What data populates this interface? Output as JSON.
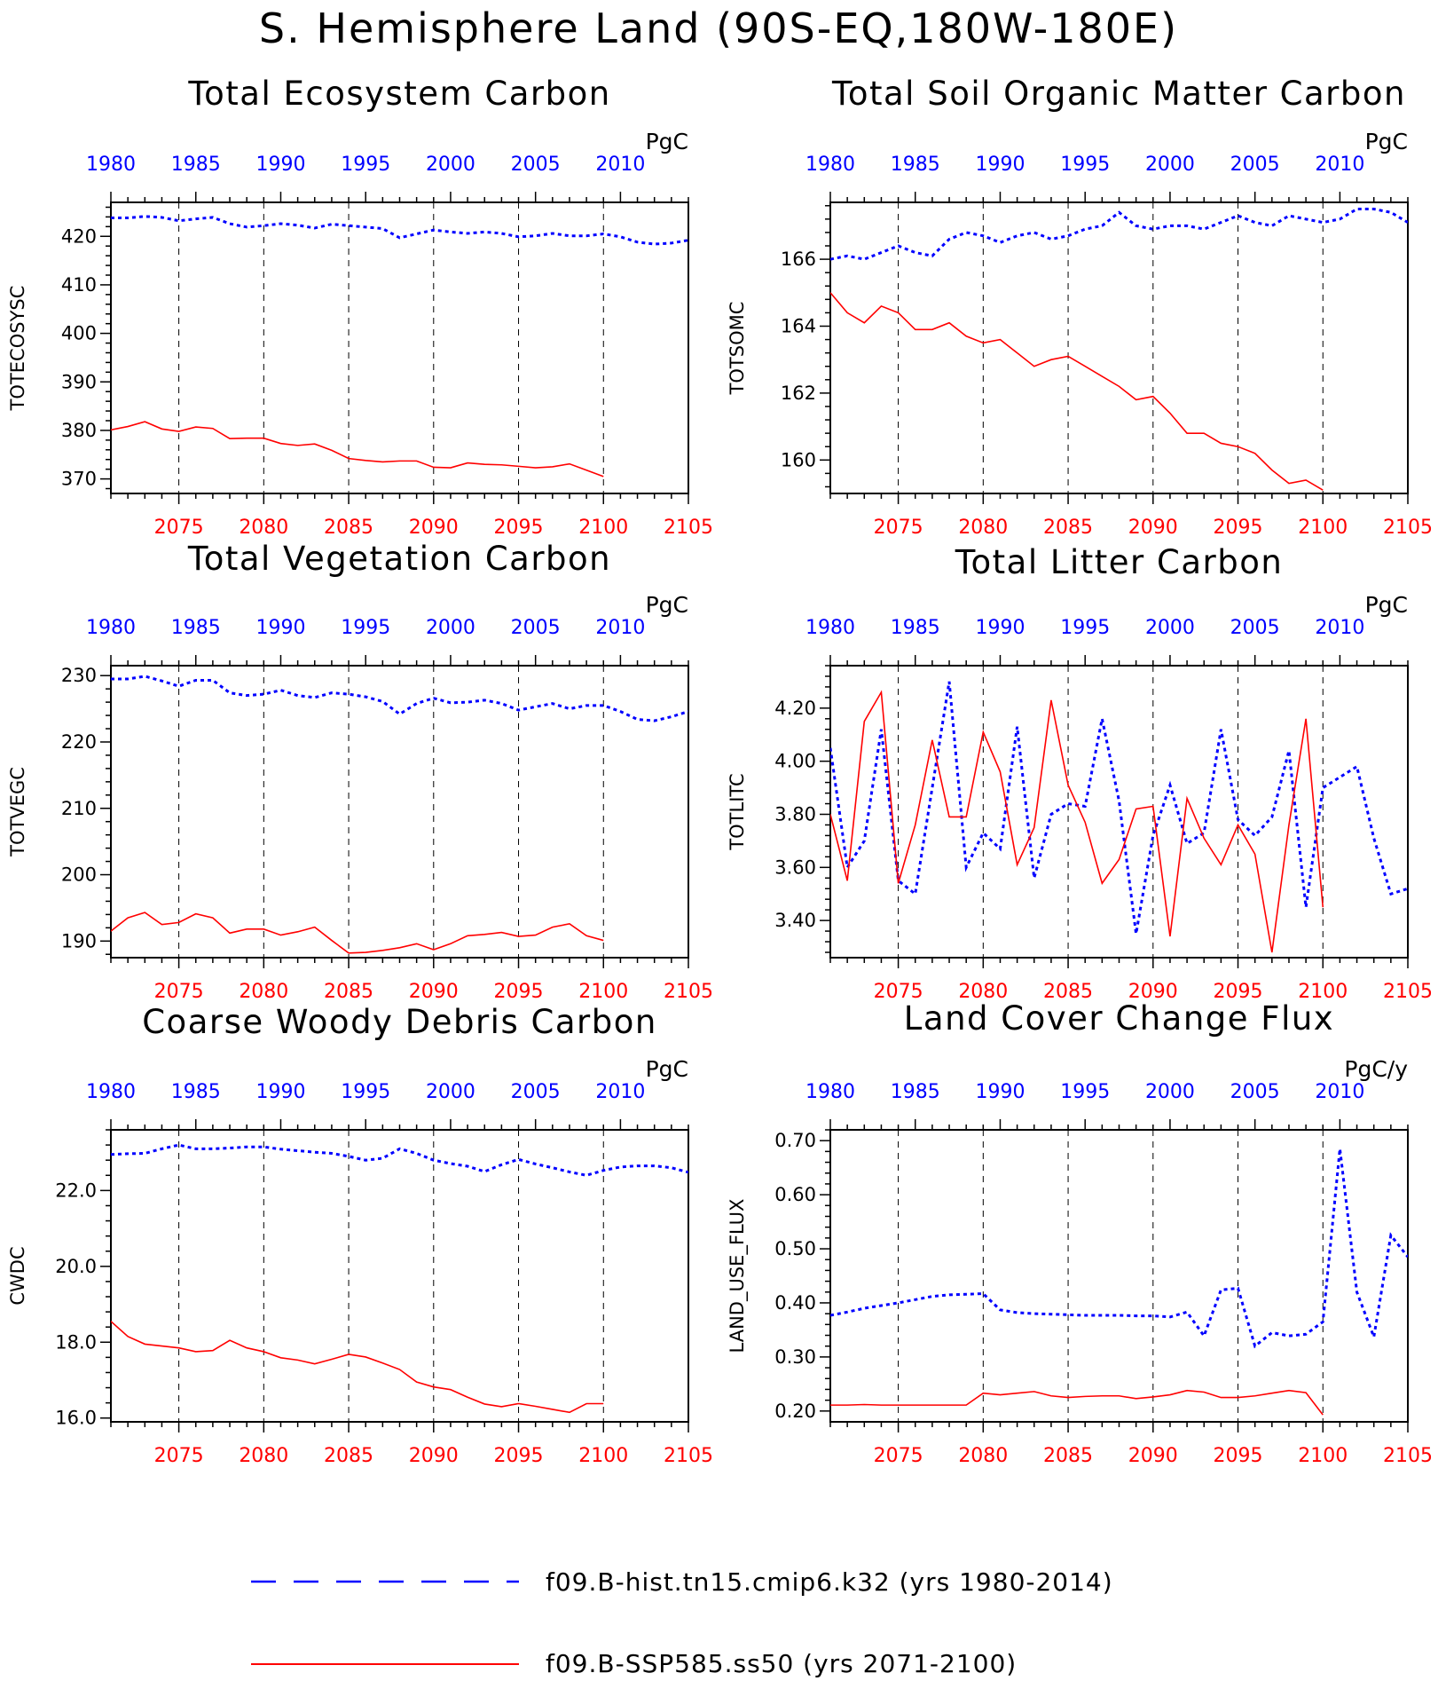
{
  "main_title": "S. Hemisphere Land (90S-EQ,180W-180E)",
  "colors": {
    "hist": "#0000ff",
    "ssp": "#ff0000"
  },
  "legend": {
    "hist_label": "f09.B-hist.tn15.cmip6.k32 (yrs 1980-2014)",
    "ssp_label": "f09.B-SSP585.ss50 (yrs 2071-2100)"
  },
  "chart_data": [
    {
      "type": "line",
      "title": "Total Ecosystem Carbon",
      "ylabel": "TOTECOSYSC",
      "unit": "PgC",
      "ylim": [
        367,
        427
      ],
      "yticks": [
        370,
        380,
        390,
        400,
        410,
        420
      ],
      "ytick_labels": [
        "370",
        "380",
        "390",
        "400",
        "410",
        "420"
      ],
      "top_axis": {
        "range": [
          1980,
          2014
        ],
        "ticks": [
          1980,
          1985,
          1990,
          1995,
          2000,
          2005,
          2010
        ]
      },
      "bottom_axis": {
        "range": [
          2071,
          2105
        ],
        "ticks": [
          2075,
          2080,
          2085,
          2090,
          2095,
          2100,
          2105
        ]
      },
      "gridlines": [
        2075,
        2080,
        2085,
        2090,
        2095,
        2100
      ],
      "series": [
        {
          "values": [
            423.8,
            423.8,
            424.1,
            423.9,
            423.2,
            423.6,
            423.9,
            422.6,
            421.9,
            422.2,
            422.6,
            422.3,
            421.7,
            422.5,
            422.2,
            421.9,
            421.6,
            419.7,
            420.5,
            421.3,
            420.9,
            420.6,
            420.9,
            420.6,
            419.9,
            420.1,
            420.6,
            420.1,
            420.1,
            420.5,
            419.9,
            418.8,
            418.4,
            418.6,
            419.2
          ]
        },
        {
          "values": [
            380.1,
            380.8,
            381.8,
            380.3,
            379.8,
            380.7,
            380.4,
            378.3,
            378.4,
            378.4,
            377.3,
            376.9,
            377.2,
            375.9,
            374.2,
            373.8,
            373.5,
            373.7,
            373.7,
            372.4,
            372.3,
            373.3,
            373.0,
            372.9,
            372.6,
            372.3,
            372.5,
            373.1,
            371.8,
            370.5
          ]
        }
      ]
    },
    {
      "type": "line",
      "title": "Total Soil Organic Matter Carbon",
      "ylabel": "TOTSOMC",
      "unit": "PgC",
      "ylim": [
        159,
        167.7
      ],
      "yticks": [
        160,
        162,
        164,
        166
      ],
      "ytick_labels": [
        "160",
        "162",
        "164",
        "166"
      ],
      "top_axis": {
        "range": [
          1980,
          2014
        ],
        "ticks": [
          1980,
          1985,
          1990,
          1995,
          2000,
          2005,
          2010
        ]
      },
      "bottom_axis": {
        "range": [
          2071,
          2105
        ],
        "ticks": [
          2075,
          2080,
          2085,
          2090,
          2095,
          2100,
          2105
        ]
      },
      "gridlines": [
        2075,
        2080,
        2085,
        2090,
        2095,
        2100
      ],
      "series": [
        {
          "values": [
            166.0,
            166.1,
            166.0,
            166.2,
            166.4,
            166.2,
            166.1,
            166.6,
            166.8,
            166.7,
            166.5,
            166.7,
            166.8,
            166.6,
            166.7,
            166.9,
            167.0,
            167.4,
            167.0,
            166.9,
            167.0,
            167.0,
            166.9,
            167.1,
            167.3,
            167.1,
            167.0,
            167.3,
            167.2,
            167.1,
            167.2,
            167.5,
            167.5,
            167.4,
            167.1
          ]
        },
        {
          "values": [
            165.0,
            164.4,
            164.1,
            164.6,
            164.4,
            163.9,
            163.9,
            164.1,
            163.7,
            163.5,
            163.6,
            163.2,
            162.8,
            163.0,
            163.1,
            162.8,
            162.5,
            162.2,
            161.8,
            161.9,
            161.4,
            160.8,
            160.8,
            160.5,
            160.4,
            160.2,
            159.7,
            159.3,
            159.4,
            159.1
          ]
        }
      ]
    },
    {
      "type": "line",
      "title": "Total Vegetation Carbon",
      "ylabel": "TOTVEGC",
      "unit": "PgC",
      "ylim": [
        187.5,
        231.5
      ],
      "yticks": [
        190,
        200,
        210,
        220,
        230
      ],
      "ytick_labels": [
        "190",
        "200",
        "210",
        "220",
        "230"
      ],
      "top_axis": {
        "range": [
          1980,
          2014
        ],
        "ticks": [
          1980,
          1985,
          1990,
          1995,
          2000,
          2005,
          2010
        ]
      },
      "bottom_axis": {
        "range": [
          2071,
          2105
        ],
        "ticks": [
          2075,
          2080,
          2085,
          2090,
          2095,
          2100,
          2105
        ]
      },
      "gridlines": [
        2075,
        2080,
        2085,
        2090,
        2095,
        2100
      ],
      "series": [
        {
          "values": [
            229.5,
            229.5,
            229.9,
            229.2,
            228.4,
            229.3,
            229.3,
            227.4,
            227.0,
            227.2,
            227.8,
            227.0,
            226.7,
            227.4,
            227.2,
            226.8,
            226.1,
            224.2,
            225.8,
            226.6,
            225.9,
            226.0,
            226.3,
            225.8,
            224.8,
            225.3,
            225.8,
            225.0,
            225.5,
            225.5,
            224.6,
            223.4,
            223.2,
            223.8,
            224.6
          ]
        },
        {
          "values": [
            191.5,
            193.5,
            194.3,
            192.5,
            192.8,
            194.1,
            193.5,
            191.2,
            191.8,
            191.8,
            190.9,
            191.4,
            192.1,
            190.1,
            188.2,
            188.3,
            188.6,
            189.0,
            189.6,
            188.7,
            189.6,
            190.8,
            191.0,
            191.3,
            190.7,
            190.9,
            192.1,
            192.6,
            190.8,
            190.1
          ]
        }
      ]
    },
    {
      "type": "line",
      "title": "Total Litter Carbon",
      "ylabel": "TOTLITC",
      "unit": "PgC",
      "ylim": [
        3.26,
        4.36
      ],
      "yticks": [
        3.4,
        3.6,
        3.8,
        4.0,
        4.2
      ],
      "ytick_labels": [
        "3.40",
        "3.60",
        "3.80",
        "4.00",
        "4.20"
      ],
      "top_axis": {
        "range": [
          1980,
          2014
        ],
        "ticks": [
          1980,
          1985,
          1990,
          1995,
          2000,
          2005,
          2010
        ]
      },
      "bottom_axis": {
        "range": [
          2071,
          2105
        ],
        "ticks": [
          2075,
          2080,
          2085,
          2090,
          2095,
          2100,
          2105
        ]
      },
      "gridlines": [
        2075,
        2080,
        2085,
        2090,
        2095,
        2100
      ],
      "series": [
        {
          "values": [
            4.05,
            3.6,
            3.7,
            4.12,
            3.55,
            3.5,
            3.9,
            4.3,
            3.6,
            3.73,
            3.67,
            4.13,
            3.56,
            3.8,
            3.84,
            3.83,
            4.16,
            3.85,
            3.35,
            3.72,
            3.91,
            3.69,
            3.73,
            4.12,
            3.78,
            3.72,
            3.79,
            4.04,
            3.45,
            3.9,
            3.94,
            3.98,
            3.71,
            3.5,
            3.52
          ]
        },
        {
          "values": [
            3.8,
            3.55,
            4.15,
            4.26,
            3.54,
            3.76,
            4.08,
            3.79,
            3.79,
            4.11,
            3.96,
            3.61,
            3.75,
            4.23,
            3.91,
            3.77,
            3.54,
            3.63,
            3.82,
            3.83,
            3.34,
            3.86,
            3.71,
            3.61,
            3.76,
            3.65,
            3.28,
            3.76,
            4.16,
            3.45
          ]
        }
      ]
    },
    {
      "type": "line",
      "title": "Coarse Woody Debris Carbon",
      "ylabel": "CWDC",
      "unit": "PgC",
      "ylim": [
        15.9,
        23.6
      ],
      "yticks": [
        16,
        18,
        20,
        22
      ],
      "ytick_labels": [
        "16.0",
        "18.0",
        "20.0",
        "22.0"
      ],
      "top_axis": {
        "range": [
          1980,
          2014
        ],
        "ticks": [
          1980,
          1985,
          1990,
          1995,
          2000,
          2005,
          2010
        ]
      },
      "bottom_axis": {
        "range": [
          2071,
          2105
        ],
        "ticks": [
          2075,
          2080,
          2085,
          2090,
          2095,
          2100,
          2105
        ]
      },
      "gridlines": [
        2075,
        2080,
        2085,
        2090,
        2095,
        2100
      ],
      "series": [
        {
          "values": [
            22.95,
            22.97,
            22.98,
            23.1,
            23.2,
            23.1,
            23.1,
            23.12,
            23.15,
            23.15,
            23.09,
            23.05,
            23.01,
            22.98,
            22.9,
            22.8,
            22.85,
            23.1,
            22.98,
            22.8,
            22.71,
            22.64,
            22.5,
            22.68,
            22.82,
            22.7,
            22.6,
            22.49,
            22.4,
            22.53,
            22.62,
            22.65,
            22.65,
            22.6,
            22.48
          ]
        },
        {
          "values": [
            18.55,
            18.15,
            17.95,
            17.9,
            17.85,
            17.75,
            17.78,
            18.05,
            17.85,
            17.75,
            17.59,
            17.53,
            17.43,
            17.55,
            17.68,
            17.61,
            17.45,
            17.28,
            16.95,
            16.82,
            16.75,
            16.55,
            16.37,
            16.3,
            16.38,
            16.31,
            16.23,
            16.15,
            16.38,
            16.38
          ]
        }
      ]
    },
    {
      "type": "line",
      "title": "Land Cover Change Flux",
      "ylabel": "LAND_USE_FLUX",
      "unit": "PgC/y",
      "ylim": [
        0.18,
        0.72
      ],
      "yticks": [
        0.2,
        0.3,
        0.4,
        0.5,
        0.6,
        0.7
      ],
      "ytick_labels": [
        "0.20",
        "0.30",
        "0.40",
        "0.50",
        "0.60",
        "0.70"
      ],
      "top_axis": {
        "range": [
          1980,
          2014
        ],
        "ticks": [
          1980,
          1985,
          1990,
          1995,
          2000,
          2005,
          2010
        ]
      },
      "bottom_axis": {
        "range": [
          2071,
          2105
        ],
        "ticks": [
          2075,
          2080,
          2085,
          2090,
          2095,
          2100,
          2105
        ]
      },
      "gridlines": [
        2075,
        2080,
        2085,
        2090,
        2095,
        2100
      ],
      "series": [
        {
          "values": [
            0.377,
            0.383,
            0.39,
            0.395,
            0.4,
            0.406,
            0.412,
            0.415,
            0.416,
            0.417,
            0.387,
            0.382,
            0.38,
            0.379,
            0.378,
            0.377,
            0.377,
            0.377,
            0.376,
            0.376,
            0.374,
            0.383,
            0.339,
            0.424,
            0.427,
            0.32,
            0.345,
            0.339,
            0.342,
            0.365,
            0.685,
            0.42,
            0.337,
            0.525,
            0.485
          ]
        },
        {
          "values": [
            0.211,
            0.211,
            0.212,
            0.211,
            0.211,
            0.211,
            0.211,
            0.211,
            0.211,
            0.233,
            0.23,
            0.233,
            0.236,
            0.228,
            0.225,
            0.227,
            0.228,
            0.228,
            0.223,
            0.226,
            0.23,
            0.238,
            0.235,
            0.225,
            0.225,
            0.228,
            0.233,
            0.238,
            0.234,
            0.193
          ]
        }
      ]
    }
  ]
}
